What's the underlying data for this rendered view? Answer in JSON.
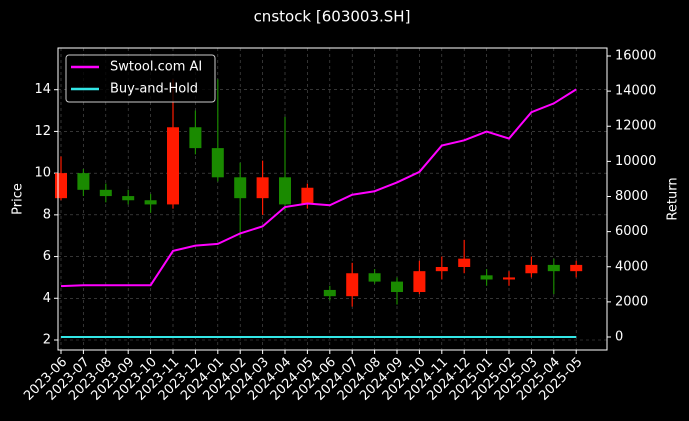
{
  "chart_data": {
    "type": "candlestick",
    "title": "cnstock [603003.SH]",
    "y_label": "Price",
    "y2_label": "Return",
    "categories": [
      "2023-06",
      "2023-07",
      "2023-08",
      "2023-09",
      "2023-10",
      "2023-11",
      "2023-12",
      "2024-01",
      "2024-02",
      "2024-03",
      "2024-04",
      "2024-05",
      "2024-06",
      "2024-07",
      "2024-08",
      "2024-09",
      "2024-10",
      "2024-11",
      "2024-12",
      "2025-01",
      "2025-02",
      "2025-03",
      "2025-04",
      "2025-05"
    ],
    "open": [
      8.8,
      10.0,
      9.2,
      8.9,
      8.7,
      8.5,
      12.2,
      11.2,
      9.8,
      8.8,
      9.8,
      8.5,
      4.4,
      4.1,
      5.2,
      4.8,
      4.3,
      5.3,
      5.5,
      5.1,
      4.9,
      5.2,
      5.6,
      5.3
    ],
    "high": [
      10.8,
      10.2,
      9.5,
      9.2,
      9.0,
      14.5,
      13.0,
      14.5,
      10.5,
      10.6,
      12.7,
      9.5,
      4.6,
      5.7,
      5.4,
      5.0,
      5.8,
      6.0,
      6.8,
      5.4,
      5.3,
      6.0,
      5.9,
      5.8
    ],
    "low": [
      8.7,
      8.9,
      8.6,
      8.5,
      8.1,
      8.3,
      10.9,
      9.6,
      6.9,
      8.0,
      8.2,
      8.3,
      3.9,
      3.6,
      4.7,
      3.7,
      4.2,
      4.9,
      5.2,
      4.6,
      4.6,
      5.0,
      4.2,
      5.0
    ],
    "close": [
      10.0,
      9.2,
      8.9,
      8.7,
      8.5,
      12.2,
      11.2,
      9.8,
      8.8,
      9.8,
      8.5,
      9.3,
      4.1,
      5.2,
      4.8,
      4.3,
      5.3,
      5.5,
      5.9,
      4.9,
      5.0,
      5.6,
      5.3,
      5.6
    ],
    "up_color": "#ff1a00",
    "down_color": "#1a8a00",
    "series": [
      {
        "name": "Swtool.com AI",
        "color": "#ff00ff",
        "axis": "y2",
        "values": [
          2900,
          2950,
          2950,
          2950,
          2950,
          4900,
          5200,
          5300,
          5900,
          6300,
          7400,
          7600,
          7500,
          8100,
          8300,
          8800,
          9400,
          10900,
          11200,
          11700,
          11300,
          12800,
          13300,
          14100
        ]
      },
      {
        "name": "Buy-and-Hold",
        "color": "#33e6e6",
        "axis": "y2",
        "values": [
          0,
          0,
          0,
          0,
          0,
          0,
          0,
          0,
          0,
          0,
          0,
          0,
          0,
          0,
          0,
          0,
          0,
          0,
          0,
          0,
          0,
          0,
          0,
          0
        ]
      }
    ],
    "ylim": [
      1.52,
      16.0
    ],
    "yticks": [
      2,
      4,
      6,
      8,
      10,
      12,
      14
    ],
    "y2lim": [
      -740,
      16455
    ],
    "y2ticks": [
      0,
      2000,
      4000,
      6000,
      8000,
      10000,
      12000,
      14000,
      16000
    ],
    "grid": true,
    "legend": "upper-left"
  }
}
